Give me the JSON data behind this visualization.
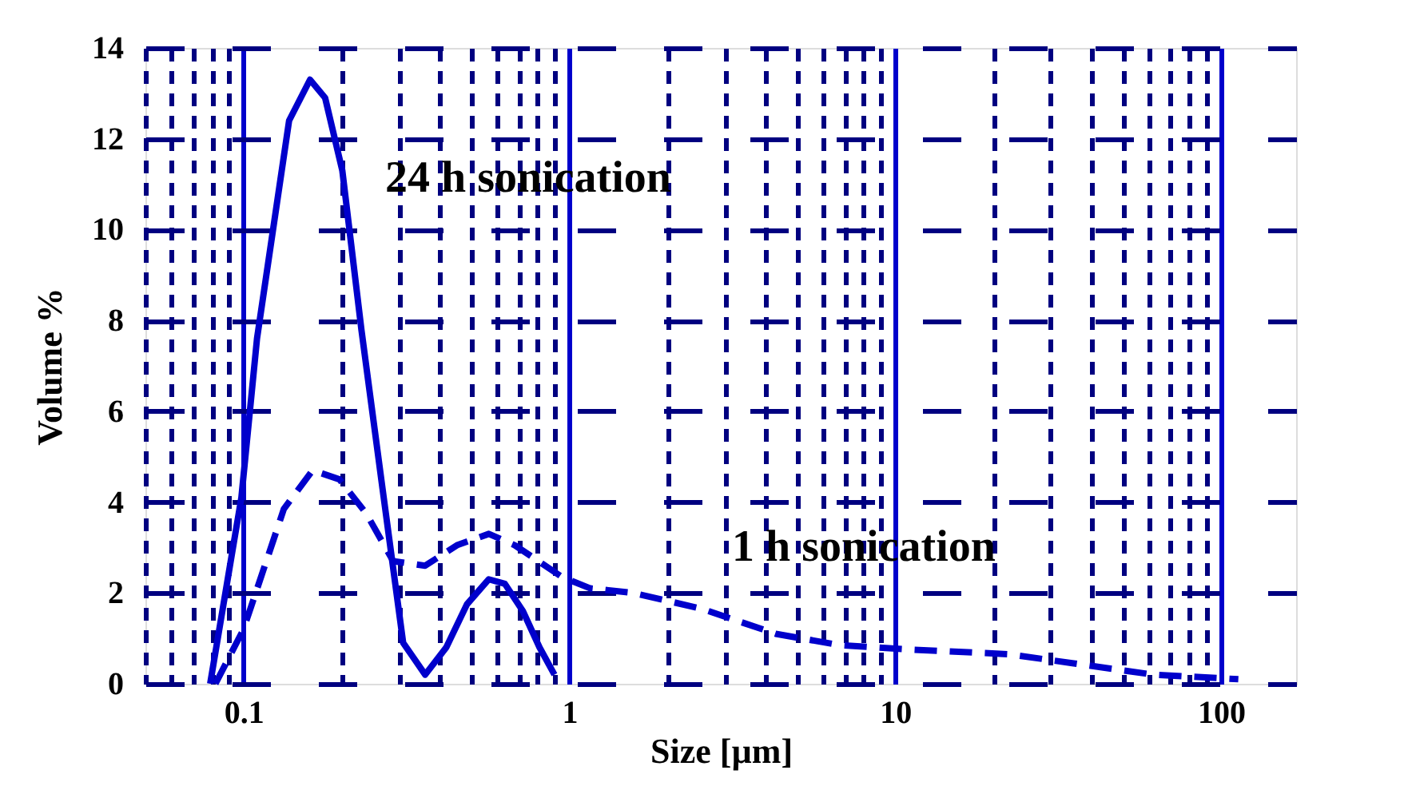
{
  "chart_data": {
    "type": "line",
    "xlabel": "Size [µm]",
    "ylabel": "Volume %",
    "log": "x",
    "grid": true,
    "marker": "none",
    "xlim": [
      0.05,
      170
    ],
    "ylim": [
      0,
      14
    ],
    "yticks": [
      0,
      2,
      4,
      6,
      8,
      10,
      12,
      14
    ],
    "xticks": [
      {
        "value": 0.05,
        "label": null
      },
      {
        "value": 0.06,
        "label": null
      },
      {
        "value": 0.07,
        "label": null
      },
      {
        "value": 0.08,
        "label": null
      },
      {
        "value": 0.09,
        "label": null
      },
      0.1,
      {
        "value": 0.2,
        "label": null
      },
      {
        "value": 0.3,
        "label": null
      },
      {
        "value": 0.4,
        "label": null
      },
      {
        "value": 0.5,
        "label": null
      },
      {
        "value": 0.6,
        "label": null
      },
      {
        "value": 0.7,
        "label": null
      },
      {
        "value": 0.8,
        "label": null
      },
      {
        "value": 0.9,
        "label": null
      },
      1,
      {
        "value": 2,
        "label": null
      },
      {
        "value": 3,
        "label": null
      },
      {
        "value": 4,
        "label": null
      },
      {
        "value": 5,
        "label": null
      },
      {
        "value": 6,
        "label": null
      },
      {
        "value": 7,
        "label": null
      },
      {
        "value": 8,
        "label": null
      },
      {
        "value": 9,
        "label": null
      },
      10,
      {
        "value": 20,
        "label": null
      },
      {
        "value": 30,
        "label": null
      },
      {
        "value": 40,
        "label": null
      },
      {
        "value": 50,
        "label": null
      },
      {
        "value": 60,
        "label": null
      },
      {
        "value": 70,
        "label": null
      },
      {
        "value": 80,
        "label": null
      },
      {
        "value": 90,
        "label": null
      },
      100
    ],
    "series": [
      {
        "color": "#0000cc",
        "line_style": "solid",
        "x": [
          0.079,
          0.0985,
          0.11,
          0.138,
          0.16,
          0.178,
          0.201,
          0.23,
          0.267,
          0.309,
          0.361,
          0.419,
          0.485,
          0.566,
          0.634,
          0.72,
          0.81,
          0.9
        ],
        "values": [
          0,
          4.1,
          7.6,
          12.4,
          13.3,
          12.9,
          11.3,
          7.8,
          4.3,
          0.9,
          0.2,
          0.8,
          1.75,
          2.3,
          2.2,
          1.6,
          0.8,
          0.2
        ]
      },
      {
        "color": "#0000cc",
        "line_style": "dashed",
        "x": [
          0.082,
          0.1,
          0.133,
          0.163,
          0.197,
          0.238,
          0.288,
          0.361,
          0.452,
          0.566,
          0.68,
          0.95,
          1.16,
          1.57,
          2.55,
          4.3,
          6.75,
          11.4,
          22.3,
          35.3,
          62,
          113
        ],
        "values": [
          0,
          1.2,
          3.85,
          4.7,
          4.5,
          3.75,
          2.7,
          2.6,
          3.05,
          3.3,
          3.05,
          2.35,
          2.1,
          2.0,
          1.65,
          1.1,
          0.85,
          0.75,
          0.65,
          0.45,
          0.2,
          0.1
        ]
      }
    ],
    "annotations": [
      "24 h sonication",
      "1 h sonication"
    ]
  }
}
